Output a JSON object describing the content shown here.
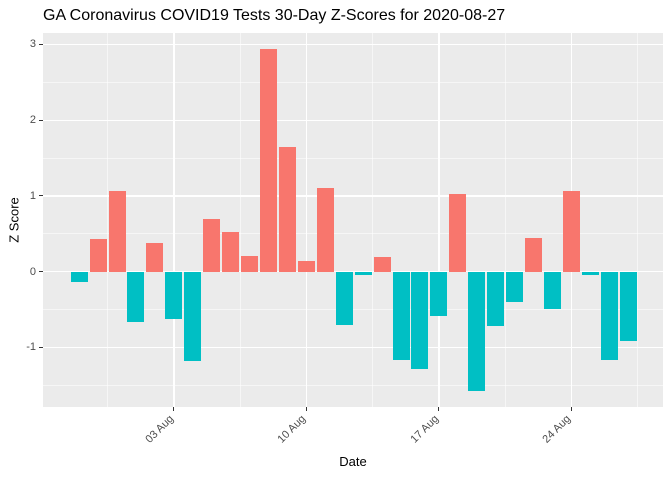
{
  "page": {
    "background": "#FFFFFF"
  },
  "chart_data": {
    "type": "bar",
    "title": "GA Coronavirus COVID19 Tests 30-Day Z-Scores for 2020-08-27",
    "xlabel": "Date",
    "ylabel": "Z Score",
    "legend_position": "none",
    "grid": true,
    "panel_background": "#EBEBEB",
    "gridline_color": "#FFFFFF",
    "axis_text_color": "#4D4D4D",
    "bar_colors": {
      "positive": "#F8766D",
      "negative": "#00BFC4"
    },
    "ylim": [
      -1.79,
      3.15
    ],
    "y_major_ticks": [
      3,
      2,
      1,
      0,
      -1
    ],
    "y_minor_ticks": [
      2.5,
      1.5,
      0.5,
      -0.5,
      -1.5
    ],
    "x_ticks": [
      {
        "label": "03 Aug",
        "day_index": 5
      },
      {
        "label": "10 Aug",
        "day_index": 12
      },
      {
        "label": "17 Aug",
        "day_index": 19
      },
      {
        "label": "24 Aug",
        "day_index": 26
      }
    ],
    "series": [
      {
        "name": "z_score",
        "x": [
          "2020-07-29",
          "2020-07-30",
          "2020-07-31",
          "2020-08-01",
          "2020-08-02",
          "2020-08-03",
          "2020-08-04",
          "2020-08-05",
          "2020-08-06",
          "2020-08-07",
          "2020-08-08",
          "2020-08-09",
          "2020-08-10",
          "2020-08-11",
          "2020-08-12",
          "2020-08-13",
          "2020-08-14",
          "2020-08-15",
          "2020-08-16",
          "2020-08-17",
          "2020-08-18",
          "2020-08-19",
          "2020-08-20",
          "2020-08-21",
          "2020-08-22",
          "2020-08-23",
          "2020-08-24",
          "2020-08-25",
          "2020-08-26",
          "2020-08-27"
        ],
        "values": [
          -0.13,
          0.43,
          1.07,
          -0.67,
          0.38,
          -0.62,
          -1.18,
          0.7,
          0.52,
          0.21,
          2.94,
          1.65,
          0.14,
          1.11,
          -0.7,
          -0.04,
          0.2,
          -1.17,
          -1.29,
          -0.58,
          1.02,
          -1.58,
          -0.72,
          -0.4,
          0.45,
          -0.49,
          1.07,
          -0.05,
          -1.17,
          -0.91
        ]
      }
    ]
  }
}
